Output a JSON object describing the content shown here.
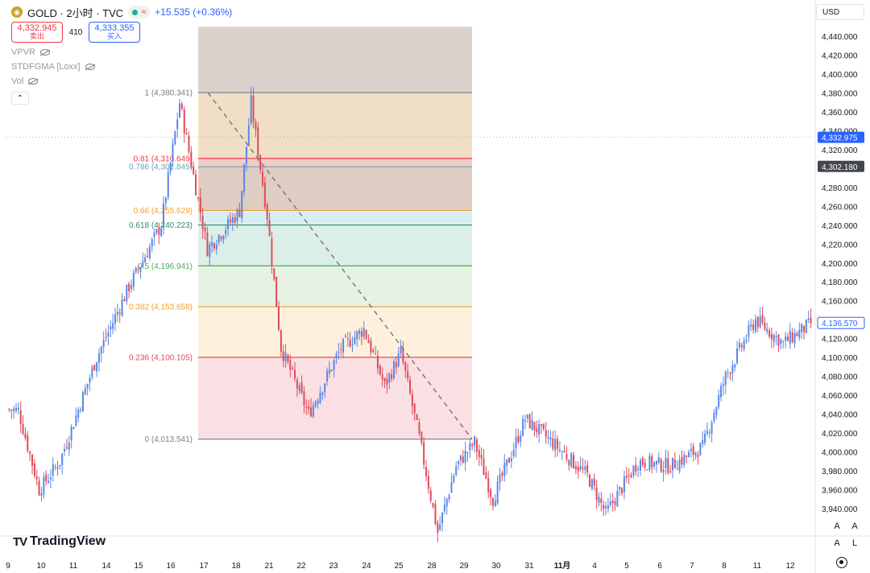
{
  "header": {
    "symbol_title": "GOLD · 2小时 · TVC",
    "change": "+15.535 (+0.36%)",
    "sell_price": "4,332.945",
    "sell_label": "卖出",
    "spread": "410",
    "buy_price": "4,333.355",
    "buy_label": "买入"
  },
  "indicators": [
    "VPVR",
    "STDFGMA [Loxx]",
    "Vol"
  ],
  "currency": "USD",
  "brand": "TradingView",
  "bottom_buttons": [
    "A",
    "A",
    "A",
    "L"
  ],
  "icons": {
    "logo": "gold-coin-icon",
    "status": "market-open-dot-icon",
    "wave": "wave-icon",
    "hide": "eye-slash-icon",
    "collapse": "chevron-up-icon",
    "settings": "gear-icon"
  },
  "colors": {
    "up": "#5b86e5",
    "down": "#e04a5a",
    "accent_blue": "#2962ff",
    "accent_red": "#f23645"
  },
  "chart_data": {
    "type": "candlestick",
    "y_axis": {
      "min": 3915,
      "max": 4450,
      "ticks": [
        3940,
        3960,
        3980,
        4000,
        4020,
        4040,
        4060,
        4080,
        4100,
        4120,
        4140,
        4160,
        4180,
        4200,
        4220,
        4240,
        4260,
        4280,
        4300,
        4320,
        4340,
        4360,
        4380,
        4400,
        4420,
        4440
      ],
      "tick_labels": [
        "3,940.000",
        "3,960.000",
        "3,980.000",
        "4,000.000",
        "4,020.000",
        "4,040.000",
        "4,060.000",
        "4,080.000",
        "4,100.000",
        "4,120.000",
        "4,140.000",
        "4,160.000",
        "4,180.000",
        "4,200.000",
        "4,220.000",
        "4,240.000",
        "4,260.000",
        "4,280.000",
        "4,300.000",
        "4,320.000",
        "4,340.000",
        "4,360.000",
        "4,380.000",
        "4,400.000",
        "4,420.000",
        "4,440.000"
      ]
    },
    "x_axis": {
      "labels": [
        "9",
        "10",
        "11",
        "14",
        "15",
        "16",
        "17",
        "18",
        "21",
        "22",
        "23",
        "24",
        "25",
        "28",
        "29",
        "30",
        "31",
        "11月",
        "4",
        "5",
        "6",
        "7",
        "8",
        "11",
        "12"
      ]
    },
    "price_tags": [
      {
        "value": 4332.975,
        "label": "4,332.975",
        "style": "blue"
      },
      {
        "value": 4302.18,
        "label": "4,302.180",
        "style": "dark"
      },
      {
        "value": 4136.57,
        "label": "4,136.570",
        "style": "outline"
      }
    ],
    "fib": {
      "levels": [
        {
          "ratio": "1",
          "value": 4380.341,
          "label": "1 (4,380.341)",
          "color": "#787b86"
        },
        {
          "ratio": "0.81",
          "value": 4310.649,
          "label": "0.81 (4,310.649)",
          "color": "#f23645"
        },
        {
          "ratio": "0.786",
          "value": 4301.845,
          "label": "0.786 (4,301.845)",
          "color": "#5fa8b8"
        },
        {
          "ratio": "0.66",
          "value": 4255.629,
          "label": "0.66 (4,255.629)",
          "color": "#f0a030"
        },
        {
          "ratio": "0.618",
          "value": 4240.223,
          "label": "0.618 (4,240.223)",
          "color": "#2e8b6d"
        },
        {
          "ratio": "0.5",
          "value": 4196.941,
          "label": "0.5 (4,196.941)",
          "color": "#4caf50"
        },
        {
          "ratio": "0.382",
          "value": 4153.658,
          "label": "0.382 (4,153.658)",
          "color": "#f0a030"
        },
        {
          "ratio": "0.236",
          "value": 4100.105,
          "label": "0.236 (4,100.105)",
          "color": "#e04a5a"
        },
        {
          "ratio": "0",
          "value": 4013.541,
          "label": "0 (4,013.541)",
          "color": "#787b86"
        }
      ],
      "bands": [
        {
          "from": 4380.341,
          "to": 4450,
          "color": "#d7ccc8"
        },
        {
          "from": 4310.649,
          "to": 4380.341,
          "color": "#eedcc0"
        },
        {
          "from": 4301.845,
          "to": 4310.649,
          "color": "#f2c7c0"
        },
        {
          "from": 4255.629,
          "to": 4301.845,
          "color": "#dcc6bb"
        },
        {
          "from": 4240.223,
          "to": 4255.629,
          "color": "#d3edf1"
        },
        {
          "from": 4196.941,
          "to": 4240.223,
          "color": "#d8ece5"
        },
        {
          "from": 4153.658,
          "to": 4196.941,
          "color": "#e3f1df"
        },
        {
          "from": 4100.105,
          "to": 4153.658,
          "color": "#fdefd9"
        },
        {
          "from": 4013.541,
          "to": 4100.105,
          "color": "#f9dde0"
        }
      ]
    },
    "candle_series": [
      {
        "from": 4045,
        "to": 4044,
        "n": 5
      },
      {
        "from": 4044,
        "to": 3960,
        "n": 9
      },
      {
        "from": 3960,
        "to": 3990,
        "n": 9
      },
      {
        "from": 3990,
        "to": 4100,
        "n": 16
      },
      {
        "from": 4100,
        "to": 4175,
        "n": 14
      },
      {
        "from": 4175,
        "to": 4240,
        "n": 14
      },
      {
        "from": 4240,
        "to": 4370,
        "n": 8
      },
      {
        "from": 4370,
        "to": 4215,
        "n": 12
      },
      {
        "from": 4215,
        "to": 4255,
        "n": 14
      },
      {
        "from": 4255,
        "to": 4370,
        "n": 5
      },
      {
        "from": 4370,
        "to": 4250,
        "n": 7
      },
      {
        "from": 4250,
        "to": 4110,
        "n": 6
      },
      {
        "from": 4110,
        "to": 4040,
        "n": 12
      },
      {
        "from": 4040,
        "to": 4110,
        "n": 14
      },
      {
        "from": 4110,
        "to": 4130,
        "n": 10
      },
      {
        "from": 4130,
        "to": 4070,
        "n": 9
      },
      {
        "from": 4070,
        "to": 4105,
        "n": 7
      },
      {
        "from": 4105,
        "to": 4015,
        "n": 8
      },
      {
        "from": 4015,
        "to": 3915,
        "n": 8
      },
      {
        "from": 3915,
        "to": 3985,
        "n": 8
      },
      {
        "from": 3985,
        "to": 4010,
        "n": 8
      },
      {
        "from": 4010,
        "to": 3950,
        "n": 8
      },
      {
        "from": 3950,
        "to": 4035,
        "n": 14
      },
      {
        "from": 4035,
        "to": 4005,
        "n": 14
      },
      {
        "from": 4005,
        "to": 3975,
        "n": 13
      },
      {
        "from": 3975,
        "to": 3935,
        "n": 8
      },
      {
        "from": 3935,
        "to": 3990,
        "n": 14
      },
      {
        "from": 3990,
        "to": 3985,
        "n": 14
      },
      {
        "from": 3985,
        "to": 4005,
        "n": 14
      },
      {
        "from": 4005,
        "to": 4080,
        "n": 10
      },
      {
        "from": 4080,
        "to": 4140,
        "n": 13
      },
      {
        "from": 4140,
        "to": 4115,
        "n": 12
      },
      {
        "from": 4115,
        "to": 4136,
        "n": 12
      }
    ]
  }
}
